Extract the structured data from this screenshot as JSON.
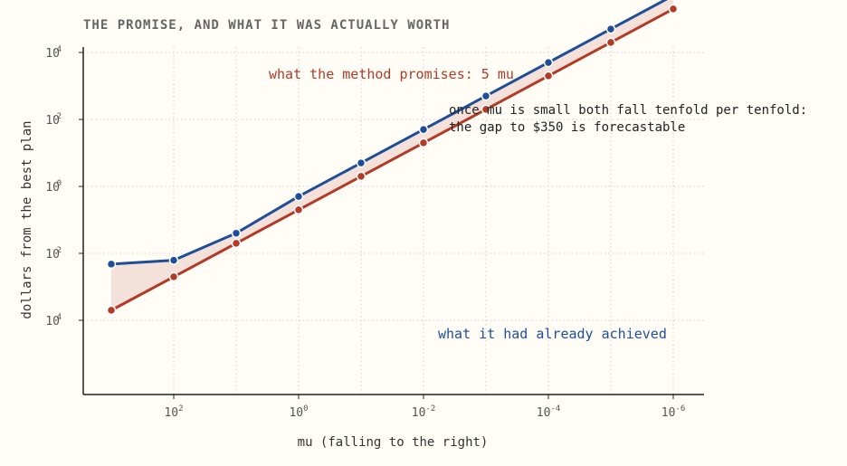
{
  "chart_data": {
    "type": "line",
    "title": "THE PROMISE, AND WHAT IT WAS ACTUALLY WORTH",
    "xlabel": "mu (falling to the right)",
    "ylabel": "dollars from the best plan",
    "x_scale": "log",
    "y_scale": "log",
    "x_direction": "decreasing",
    "xlim": [
      1000,
      1e-06
    ],
    "ylim": [
      1e-06,
      10000
    ],
    "x_ticks": [
      {
        "base": "10",
        "exp": "2"
      },
      {
        "base": "10",
        "exp": "0"
      },
      {
        "base": "10",
        "exp": "-2"
      },
      {
        "base": "10",
        "exp": "-4"
      },
      {
        "base": "10",
        "exp": "-6"
      }
    ],
    "y_ticks": [
      {
        "base": "10",
        "exp": "4"
      },
      {
        "base": "10",
        "exp": "2"
      },
      {
        "base": "10",
        "exp": "0"
      },
      {
        "base": "10",
        "exp": "-2"
      },
      {
        "base": "10",
        "exp": "-4"
      },
      {
        "base": "10",
        "exp": "-6"
      }
    ],
    "grid": true,
    "x": [
      1000,
      100,
      10,
      1,
      0.1,
      0.01,
      0.001,
      0.0001,
      1e-05,
      1e-06
    ],
    "series": [
      {
        "values": [
          5000,
          500,
          50,
          5,
          0.5,
          0.05,
          0.005,
          0.0005,
          5e-05,
          5e-06
        ],
        "color": "#b23a26"
      },
      {
        "values": [
          210,
          160,
          25,
          2,
          0.2,
          0.02,
          0.002,
          0.0002,
          2e-05,
          2e-06
        ],
        "color": "#1f4e99"
      }
    ],
    "gap_fill_color": "#f4e1d9",
    "annotations": {
      "promise": "what the method promises: 5 mu",
      "achieved": "what it had already achieved",
      "note_line1": "once mu is small both fall tenfold per tenfold:",
      "note_line2": "the gap to $350 is forecastable"
    }
  }
}
